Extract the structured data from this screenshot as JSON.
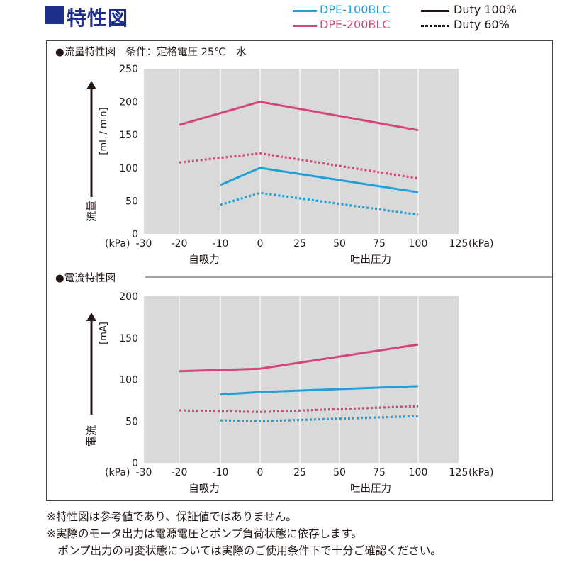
{
  "header": {
    "title": "特性図"
  },
  "legend": {
    "series1": "DPE-100BLC",
    "series2": "DPE-200BLC",
    "duty_full": "Duty 100%",
    "duty_partial": "Duty 60%"
  },
  "colors": {
    "blue": "#1ea0d8",
    "pink": "#d4467c",
    "plot_bg": "#d9d9d9",
    "header": "#1d2f8a"
  },
  "chart_data": [
    {
      "type": "line",
      "title": "●流量特性図　条件：定格電圧 25℃　水",
      "ylabel": "流量",
      "yunit": "[mL / min]",
      "xunit_left": "(kPa)",
      "xunit_right": "(kPa)",
      "xlabel_left": "自吸力",
      "xlabel_right": "吐出圧力",
      "xlim": [
        -30,
        125
      ],
      "ylim": [
        0,
        250
      ],
      "xticks": [
        -30,
        -20,
        -10,
        0,
        25,
        50,
        75,
        100,
        125
      ],
      "yticks": [
        0,
        50,
        100,
        150,
        200,
        250
      ],
      "series": [
        {
          "model": "DPE-200BLC",
          "duty": "Duty 100%",
          "x": [
            -20,
            0,
            100
          ],
          "y": [
            165,
            200,
            157
          ]
        },
        {
          "model": "DPE-200BLC",
          "duty": "Duty 60%",
          "x": [
            -20,
            0,
            100
          ],
          "y": [
            108,
            122,
            84
          ]
        },
        {
          "model": "DPE-100BLC",
          "duty": "Duty 100%",
          "x": [
            -10,
            0,
            100
          ],
          "y": [
            74,
            100,
            63
          ]
        },
        {
          "model": "DPE-100BLC",
          "duty": "Duty 60%",
          "x": [
            -10,
            0,
            100
          ],
          "y": [
            44,
            62,
            29
          ]
        }
      ]
    },
    {
      "type": "line",
      "title": "●電流特性図",
      "ylabel": "電流",
      "yunit": "[mA]",
      "xunit_left": "(kPa)",
      "xunit_right": "(kPa)",
      "xlabel_left": "自吸力",
      "xlabel_right": "吐出圧力",
      "xlim": [
        -30,
        125
      ],
      "ylim": [
        0,
        200
      ],
      "xticks": [
        -30,
        -20,
        -10,
        0,
        25,
        50,
        75,
        100,
        125
      ],
      "yticks": [
        0,
        50,
        100,
        150,
        200
      ],
      "series": [
        {
          "model": "DPE-200BLC",
          "duty": "Duty 100%",
          "x": [
            -20,
            0,
            100
          ],
          "y": [
            110,
            113,
            142
          ]
        },
        {
          "model": "DPE-200BLC",
          "duty": "Duty 60%",
          "x": [
            -20,
            0,
            100
          ],
          "y": [
            63,
            61,
            68
          ]
        },
        {
          "model": "DPE-100BLC",
          "duty": "Duty 100%",
          "x": [
            -10,
            0,
            100
          ],
          "y": [
            82,
            85,
            92
          ]
        },
        {
          "model": "DPE-100BLC",
          "duty": "Duty 60%",
          "x": [
            -10,
            0,
            100
          ],
          "y": [
            51,
            50,
            56
          ]
        }
      ]
    }
  ],
  "notes": [
    "※特性図は参考値であり、保証値ではありません。",
    "※実際のモータ出力は電源電圧とポンプ負荷状態に依存します。",
    "　ポンプ出力の可変状態については実際のご使用条件下で十分ご確認ください。"
  ]
}
